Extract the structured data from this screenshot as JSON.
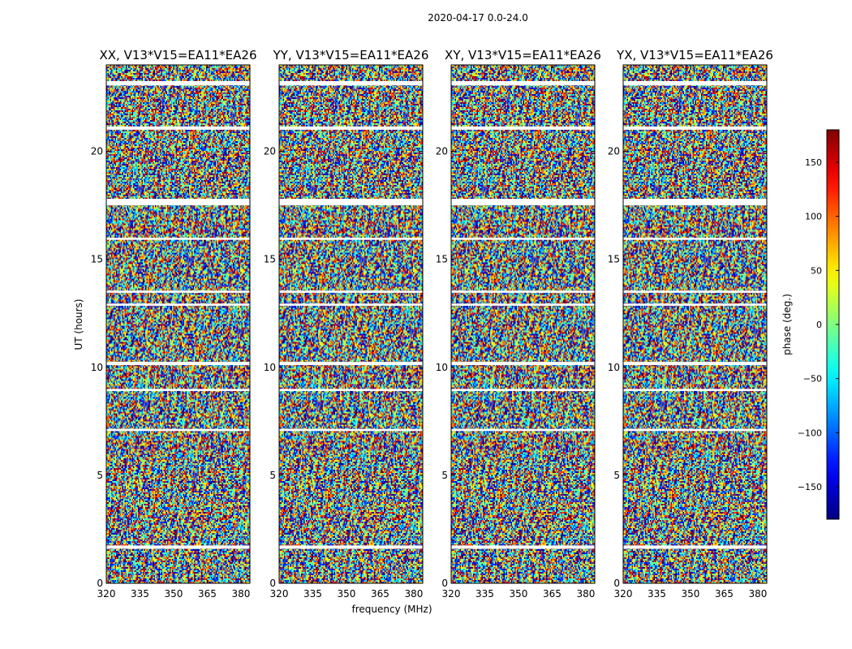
{
  "figure": {
    "suptitle": "2020-04-17 0.0-24.0"
  },
  "chart_data": {
    "type": "heatmap",
    "panels": [
      {
        "title": "XX, V13*V15=EA11*EA26",
        "pol": "XX"
      },
      {
        "title": "YY, V13*V15=EA11*EA26",
        "pol": "YY"
      },
      {
        "title": "XY, V13*V15=EA11*EA26",
        "pol": "XY"
      },
      {
        "title": "YX, V13*V15=EA11*EA26",
        "pol": "YX"
      }
    ],
    "xlabel": "frequency (MHz)",
    "ylabel": "UT (hours)",
    "x_ticks": [
      320,
      335,
      350,
      365,
      380
    ],
    "xlim": [
      320,
      384
    ],
    "y_ticks": [
      0,
      5,
      10,
      15,
      20
    ],
    "ylim": [
      0,
      24
    ],
    "colorbar": {
      "label": "phase (deg.)",
      "ticks": [
        150,
        100,
        50,
        0,
        -50,
        -100,
        -150
      ],
      "tick_labels": [
        "150",
        "100",
        "50",
        "0",
        "−50",
        "−100",
        "−150"
      ],
      "range": [
        -180,
        180
      ],
      "colormap": "jet"
    },
    "gaps_ut_hours": [
      [
        1.6,
        1.75
      ],
      [
        7.05,
        7.15
      ],
      [
        8.9,
        9.0
      ],
      [
        10.1,
        10.25
      ],
      [
        12.85,
        12.95
      ],
      [
        13.45,
        13.55
      ],
      [
        15.9,
        16.0
      ],
      [
        17.5,
        17.8
      ],
      [
        21.0,
        21.15
      ],
      [
        23.05,
        23.25
      ]
    ]
  }
}
